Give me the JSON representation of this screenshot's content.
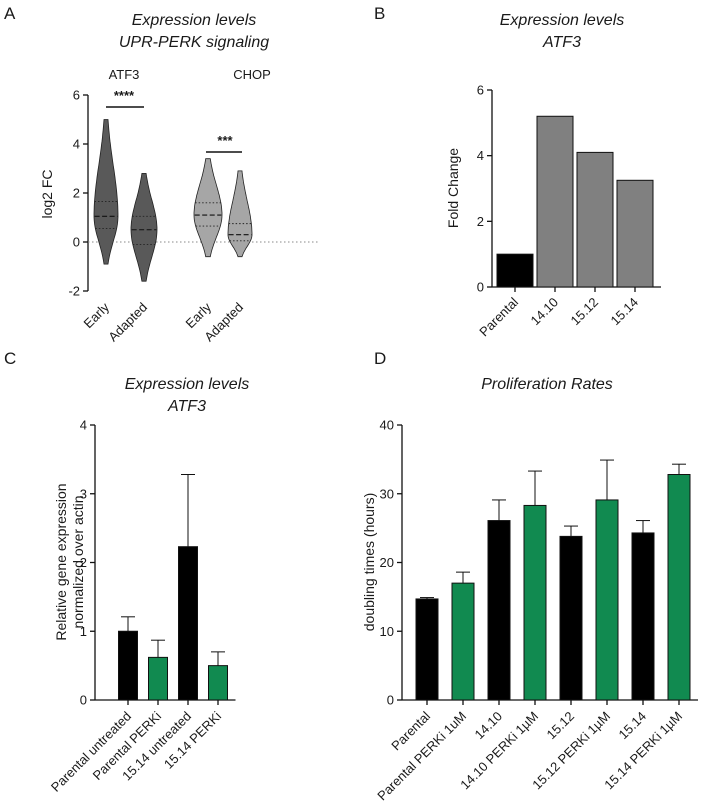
{
  "panels": [
    {
      "letter": "A"
    },
    {
      "letter": "B"
    },
    {
      "letter": "C"
    },
    {
      "letter": "D"
    }
  ],
  "chart_data": [
    {
      "panel": "A",
      "type": "violin",
      "title": "Expression levels",
      "subtitle": "UPR-PERK signaling",
      "ylabel": "log2 FC",
      "ylim": [
        -2,
        6
      ],
      "yticks": [
        -2,
        0,
        2,
        4,
        6
      ],
      "reference_line": 0,
      "groups": [
        {
          "label": "ATF3",
          "significance": "****",
          "series": [
            {
              "name": "Early",
              "color": "#595959",
              "min": -0.9,
              "q1": 0.55,
              "median": 1.05,
              "q3": 1.65,
              "max": 5.0
            },
            {
              "name": "Adapted",
              "color": "#595959",
              "min": -1.6,
              "q1": -0.1,
              "median": 0.5,
              "q3": 1.05,
              "max": 2.8
            }
          ]
        },
        {
          "label": "CHOP",
          "significance": "***",
          "series": [
            {
              "name": "Early",
              "color": "#a6a6a6",
              "min": -0.6,
              "q1": 0.65,
              "median": 1.1,
              "q3": 1.6,
              "max": 3.4
            },
            {
              "name": "Adapted",
              "color": "#a6a6a6",
              "min": -0.6,
              "q1": 0.05,
              "median": 0.3,
              "q3": 0.75,
              "max": 2.9
            }
          ]
        }
      ]
    },
    {
      "panel": "B",
      "type": "bar",
      "title": "Expression levels",
      "subtitle": "ATF3",
      "ylabel": "Fold Change",
      "ylim": [
        0,
        6
      ],
      "yticks": [
        0,
        2,
        4,
        6
      ],
      "categories": [
        "Parental",
        "14.10",
        "15.12",
        "15.14"
      ],
      "values": [
        1.0,
        5.2,
        4.1,
        3.25
      ],
      "colors": [
        "#000000",
        "#808080",
        "#808080",
        "#808080"
      ]
    },
    {
      "panel": "C",
      "type": "bar",
      "title": "Expression levels",
      "subtitle": "ATF3",
      "ylabel": "Relative gene expression",
      "ylabel2": "normalized over actin",
      "ylim": [
        0,
        4
      ],
      "yticks": [
        0,
        1,
        2,
        3,
        4
      ],
      "categories": [
        "Parental untreated",
        "Parental PERKi",
        "15.14 untreated",
        "15.14 PERKi"
      ],
      "values": [
        1.0,
        0.62,
        2.23,
        0.5
      ],
      "errors": [
        0.21,
        0.25,
        1.05,
        0.2
      ],
      "colors": [
        "#000000",
        "#118a50",
        "#000000",
        "#118a50"
      ]
    },
    {
      "panel": "D",
      "type": "bar",
      "title": "Proliferation Rates",
      "ylabel": "doubling times (hours)",
      "ylim": [
        0,
        40
      ],
      "yticks": [
        0,
        10,
        20,
        30,
        40
      ],
      "categories": [
        "Parental",
        "Parental PERKi 1uM",
        "14.10",
        "14.10 PERKi 1µM",
        "15.12",
        "15.12 PERKi 1µM",
        "15.14",
        "15.14  PERKi 1µM"
      ],
      "values": [
        14.7,
        17.0,
        26.1,
        28.3,
        23.8,
        29.1,
        24.3,
        32.8
      ],
      "errors": [
        0.2,
        1.6,
        3.0,
        5.0,
        1.5,
        5.8,
        1.8,
        1.5
      ],
      "colors": [
        "#000000",
        "#118a50",
        "#000000",
        "#118a50",
        "#000000",
        "#118a50",
        "#000000",
        "#118a50"
      ]
    }
  ]
}
